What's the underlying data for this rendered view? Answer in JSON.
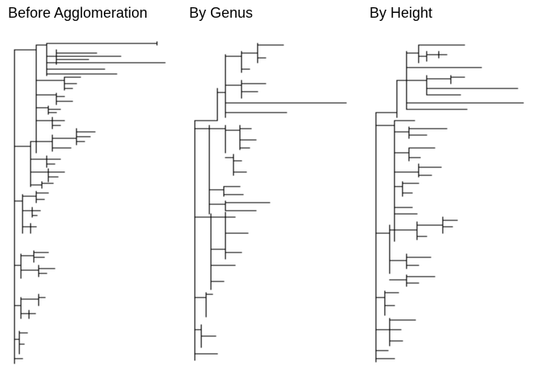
{
  "colors": {
    "background": "#ffffff",
    "ink": "#000000"
  },
  "panels": [
    {
      "id": "before",
      "title": "Before Agglomeration"
    },
    {
      "id": "genus",
      "title": "By Genus"
    },
    {
      "id": "height",
      "title": "By Height"
    }
  ]
}
